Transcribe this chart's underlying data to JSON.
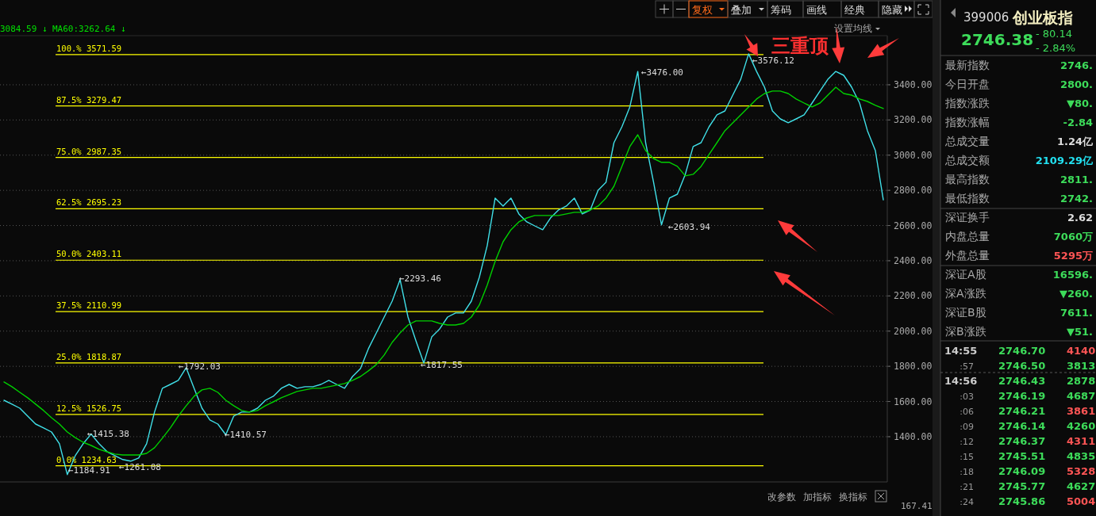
{
  "chart_data": [
    {
      "type": "line",
      "categories": [
        null,
        null,
        null,
        null,
        null,
        null,
        null,
        null,
        null,
        null,
        null,
        null,
        null,
        null,
        null,
        null,
        null,
        null,
        null,
        null,
        null,
        null,
        null,
        null,
        null,
        null,
        null,
        null,
        null,
        null,
        null,
        null,
        null,
        null,
        null,
        null,
        null,
        null,
        null,
        null,
        null,
        null,
        null,
        null,
        null,
        null,
        null,
        null,
        null,
        null,
        null,
        null,
        null,
        null,
        null,
        null,
        null,
        null,
        null,
        null,
        null,
        null,
        null,
        null,
        null,
        null,
        null,
        null,
        null,
        null,
        null,
        null,
        null,
        null,
        null,
        null,
        null,
        null,
        null,
        null,
        null,
        null,
        null,
        null,
        null,
        null,
        null,
        null,
        null,
        null,
        null,
        null,
        null,
        null,
        null,
        null,
        null,
        null,
        null,
        null,
        null,
        null,
        null,
        null,
        null,
        null,
        null,
        null,
        null,
        null,
        null,
        null
      ],
      "series": [
        {
          "color": "#40e0e8",
          "values": [
            1607,
            1585,
            1562,
            1517,
            1472,
            1450,
            1427,
            1360,
            1185,
            1292,
            1360,
            1415,
            1360,
            1315,
            1292,
            1270,
            1261,
            1279,
            1360,
            1540,
            1675,
            1697,
            1720,
            1792,
            1675,
            1562,
            1495,
            1472,
            1411,
            1517,
            1540,
            1540,
            1562,
            1607,
            1630,
            1675,
            1697,
            1675,
            1684,
            1684,
            1697,
            1720,
            1697,
            1675,
            1742,
            1787,
            1900,
            1990,
            2080,
            2170,
            2293,
            2080,
            1945,
            1818,
            1967,
            2013,
            2080,
            2103,
            2103,
            2170,
            2305,
            2486,
            2756,
            2711,
            2756,
            2666,
            2621,
            2598,
            2576,
            2644,
            2688,
            2711,
            2756,
            2666,
            2688,
            2801,
            2846,
            3071,
            3161,
            3274,
            3476,
            3071,
            2846,
            2604,
            2756,
            2778,
            2891,
            3049,
            3071,
            3161,
            3229,
            3251,
            3341,
            3431,
            3576,
            3476,
            3386,
            3251,
            3206,
            3184,
            3206,
            3229,
            3296,
            3364,
            3431,
            3476,
            3454,
            3386,
            3296,
            3139,
            3026,
            2746
          ]
        },
        {
          "color": "#00d000",
          "values": [
            1711,
            1684,
            1652,
            1621,
            1585,
            1549,
            1508,
            1472,
            1427,
            1395,
            1368,
            1350,
            1328,
            1314,
            1301,
            1296,
            1296,
            1296,
            1305,
            1337,
            1391,
            1450,
            1517,
            1576,
            1630,
            1666,
            1675,
            1652,
            1607,
            1576,
            1549,
            1540,
            1549,
            1576,
            1598,
            1621,
            1639,
            1657,
            1666,
            1675,
            1675,
            1684,
            1693,
            1702,
            1720,
            1742,
            1774,
            1810,
            1864,
            1936,
            1990,
            2035,
            2058,
            2058,
            2058,
            2044,
            2035,
            2035,
            2044,
            2080,
            2148,
            2261,
            2396,
            2508,
            2576,
            2621,
            2643,
            2657,
            2657,
            2657,
            2657,
            2666,
            2675,
            2675,
            2688,
            2711,
            2756,
            2823,
            2936,
            3049,
            3116,
            3026,
            2981,
            2959,
            2959,
            2936,
            2882,
            2891,
            2936,
            3004,
            3071,
            3139,
            3184,
            3229,
            3274,
            3319,
            3350,
            3364,
            3364,
            3350,
            3319,
            3296,
            3274,
            3296,
            3341,
            3386,
            3350,
            3341,
            3319,
            3305,
            3283,
            3265
          ]
        }
      ],
      "ylim": [
        1143,
        3679
      ],
      "yticks": [
        {
          "value": 1400,
          "label": "1400.00"
        },
        {
          "value": 1600,
          "label": "1600.00"
        },
        {
          "value": 1800,
          "label": "1800.00"
        },
        {
          "value": 2000,
          "label": "2000.00"
        },
        {
          "value": 2200,
          "label": "2200.00"
        },
        {
          "value": 2400,
          "label": "2400.00"
        },
        {
          "value": 2600,
          "label": "2600.00"
        },
        {
          "value": 2800,
          "label": "2800.00"
        },
        {
          "value": 3000,
          "label": "3000.00"
        },
        {
          "value": 3200,
          "label": "3200.00"
        },
        {
          "value": 3400,
          "label": "3400.00"
        }
      ],
      "grid": "y",
      "ref_lines": [
        {
          "axis": "y",
          "value": 3571.59,
          "label": "100.% 3571.59",
          "color": "#ffff00"
        },
        {
          "axis": "y",
          "value": 3279.47,
          "label": "87.5% 3279.47",
          "color": "#ffff00"
        },
        {
          "axis": "y",
          "value": 2987.35,
          "label": "75.0% 2987.35",
          "color": "#ffff00"
        },
        {
          "axis": "y",
          "value": 2695.23,
          "label": "62.5% 2695.23",
          "color": "#ffff00"
        },
        {
          "axis": "y",
          "value": 2403.11,
          "label": "50.0% 2403.11",
          "color": "#ffff00"
        },
        {
          "axis": "y",
          "value": 2110.99,
          "label": "37.5% 2110.99",
          "color": "#ffff00"
        },
        {
          "axis": "y",
          "value": 1818.87,
          "label": "25.0% 1818.87",
          "color": "#ffff00"
        },
        {
          "axis": "y",
          "value": 1526.75,
          "label": "12.5% 1526.75",
          "color": "#ffff00"
        },
        {
          "axis": "y",
          "value": 1234.63,
          "label": "0.0% 1234.63",
          "color": "#ffff00"
        }
      ],
      "annotations": [
        "3084.59 ↓",
        "MA60:3262.64 ↓",
        "复权",
        "叠加",
        "筹码",
        "画线",
        "经典",
        "隐藏",
        "设置均线",
        "改参数",
        "加指标",
        "换指标",
        "167.41",
        "三重顶",
        "←3576.12",
        "←3476.00",
        "←2603.94",
        "←2293.46",
        "←1817.55",
        "←1792.03",
        "←1410.57",
        "←1415.38",
        "←1184.91",
        "←1261.08"
      ]
    },
    {
      "type": "other",
      "annotations": [
        "399006",
        "创业板指",
        "2746.38",
        "- 80.14",
        "- 2.84%",
        "最新指数",
        "2746.",
        "今日开盘",
        "2800.",
        "指数涨跌",
        "▼80.",
        "指数涨幅",
        "-2.84",
        "总成交量",
        "1.24亿",
        "总成交额",
        "2109.29亿",
        "最高指数",
        "2811.",
        "最低指数",
        "2742.",
        "深证换手",
        "2.62",
        "内盘总量",
        "7060万",
        "外盘总量",
        "5295万",
        "深证A股",
        "16596.",
        "深A涨跌",
        "▼260.",
        "深证B股",
        "7611.",
        "深B涨跌",
        "▼51.",
        "14:55",
        "2746.70",
        "4140",
        ":57",
        "2746.50",
        "3813",
        "14:56",
        "2746.43",
        "2878",
        ":03",
        "2746.19",
        "4687",
        ":06",
        "2746.21",
        "3861",
        ":09",
        "2746.14",
        "4260",
        ":12",
        "2746.37",
        "4311",
        ":15",
        "2745.51",
        "4835",
        ":18",
        "2746.09",
        "5328",
        ":21",
        "2745.77",
        "4627",
        ":24",
        "2745.86",
        "5004"
      ]
    }
  ]
}
